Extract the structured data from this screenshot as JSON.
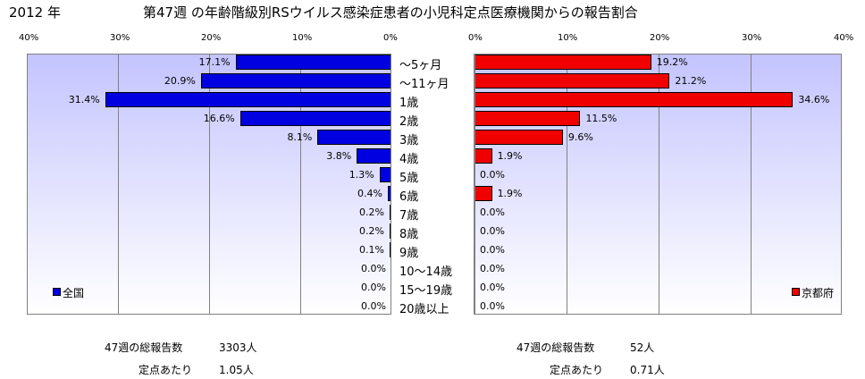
{
  "header": {
    "year": "2012 年",
    "title": "第47週 の年齢階級別RSウイルス感染症患者の小児科定点医療機関からの報告割合"
  },
  "chart_data": [
    {
      "type": "bar",
      "orientation": "horizontal",
      "direction": "right-to-left",
      "legend": "全国",
      "legend_color": "#0000e0",
      "legend_position": "bottom-left",
      "xlim": [
        0,
        40
      ],
      "tick_labels": [
        "40%",
        "30%",
        "20%",
        "10%",
        "0%"
      ],
      "categories": [
        "〜5ヶ月",
        "〜11ヶ月",
        "1歳",
        "2歳",
        "3歳",
        "4歳",
        "5歳",
        "6歳",
        "7歳",
        "8歳",
        "9歳",
        "10〜14歳",
        "15〜19歳",
        "20歳以上"
      ],
      "values": [
        17.1,
        20.9,
        31.4,
        16.6,
        8.1,
        3.8,
        1.3,
        0.4,
        0.2,
        0.2,
        0.1,
        0.0,
        0.0,
        0.0
      ],
      "value_labels": [
        "17.1%",
        "20.9%",
        "31.4%",
        "16.6%",
        "8.1%",
        "3.8%",
        "1.3%",
        "0.4%",
        "0.2%",
        "0.2%",
        "0.1%",
        "0.0%",
        "0.0%",
        "0.0%"
      ],
      "grid": true
    },
    {
      "type": "bar",
      "orientation": "horizontal",
      "legend": "京都府",
      "legend_color": "#f00000",
      "legend_position": "bottom-right",
      "xlim": [
        0,
        40
      ],
      "tick_labels": [
        "0%",
        "10%",
        "20%",
        "30%",
        "40%"
      ],
      "categories": [
        "〜5ヶ月",
        "〜11ヶ月",
        "1歳",
        "2歳",
        "3歳",
        "4歳",
        "5歳",
        "6歳",
        "7歳",
        "8歳",
        "9歳",
        "10〜14歳",
        "15〜19歳",
        "20歳以上"
      ],
      "values": [
        19.2,
        21.2,
        34.6,
        11.5,
        9.6,
        1.9,
        0.0,
        1.9,
        0.0,
        0.0,
        0.0,
        0.0,
        0.0,
        0.0
      ],
      "value_labels": [
        "19.2%",
        "21.2%",
        "34.6%",
        "11.5%",
        "9.6%",
        "1.9%",
        "0.0%",
        "1.9%",
        "0.0%",
        "0.0%",
        "0.0%",
        "0.0%",
        "0.0%",
        "0.0%"
      ],
      "grid": true
    }
  ],
  "footer": {
    "national": {
      "total_label": "47週の総報告数",
      "total_value": "3303人",
      "per_label": "定点あたり",
      "per_value": "1.05人"
    },
    "kyoto": {
      "total_label": "47週の総報告数",
      "total_value": "52人",
      "per_label": "定点あたり",
      "per_value": "0.71人"
    }
  }
}
